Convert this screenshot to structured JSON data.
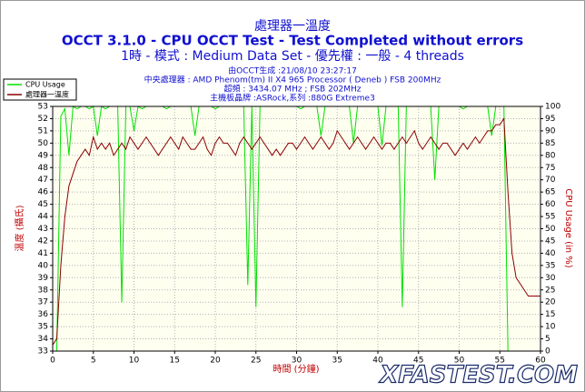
{
  "chart_data": {
    "type": "line",
    "title": "處理器一溫度",
    "subtitle": "OCCT 3.1.0 - CPU OCCT Test - Test Completed without errors",
    "subtitle2": "1時 - 模式 : Medium Data Set - 優先權 : 一般 - 4 threads",
    "info": [
      "由OCCT生成 :21/08/10 23:27:17",
      "中央處理器 : AMD Phenom(tm) II X4 965 Processor ( Deneb ) FSB 200MHz",
      "超頻 : 3434.07 MHz ; FSB 202MHz",
      "主機板晶牌 :ASRock,系列 :880G Extreme3"
    ],
    "xlabel": "時間 (分鐘)",
    "ylabel": "溫度 (攝氏)",
    "y2label": "CPU Usage (in %)",
    "watermark": "XFASTEST.COM",
    "grid": true,
    "legend": "top-left",
    "xlim": [
      0,
      60
    ],
    "xticks": [
      0,
      5,
      10,
      15,
      20,
      25,
      30,
      35,
      40,
      45,
      50,
      55,
      60
    ],
    "ylim": [
      33,
      53
    ],
    "yticks": [
      33,
      34,
      35,
      36,
      37,
      38,
      39,
      40,
      41,
      42,
      43,
      44,
      45,
      46,
      47,
      48,
      49,
      50,
      51,
      52,
      53
    ],
    "y2lim": [
      0,
      100
    ],
    "y2ticks": [
      0,
      5,
      10,
      15,
      20,
      25,
      30,
      35,
      40,
      45,
      50,
      55,
      60,
      65,
      70,
      75,
      80,
      85,
      90,
      95,
      100
    ],
    "x": [
      0,
      0.5,
      1,
      1.5,
      2,
      2.5,
      3,
      3.5,
      4,
      4.5,
      5,
      5.5,
      6,
      6.5,
      7,
      7.5,
      8,
      8.5,
      9,
      9.5,
      10,
      10.5,
      11,
      11.5,
      12,
      12.5,
      13,
      13.5,
      14,
      14.5,
      15,
      15.5,
      16,
      16.5,
      17,
      17.5,
      18,
      18.5,
      19,
      19.5,
      20,
      20.5,
      21,
      21.5,
      22,
      22.5,
      23,
      23.5,
      24,
      24.5,
      25,
      25.5,
      26,
      26.5,
      27,
      27.5,
      28,
      28.5,
      29,
      29.5,
      30,
      30.5,
      31,
      31.5,
      32,
      32.5,
      33,
      33.5,
      34,
      34.5,
      35,
      35.5,
      36,
      36.5,
      37,
      37.5,
      38,
      38.5,
      39,
      39.5,
      40,
      40.5,
      41,
      41.5,
      42,
      42.5,
      43,
      43.5,
      44,
      44.5,
      45,
      45.5,
      46,
      46.5,
      47,
      47.5,
      48,
      48.5,
      49,
      49.5,
      50,
      50.5,
      51,
      51.5,
      52,
      52.5,
      53,
      53.5,
      54,
      54.5,
      55,
      55.5,
      56,
      56.5,
      57,
      57.5,
      58,
      58.5,
      59,
      59.5,
      60
    ],
    "series": [
      {
        "name": "CPU Usage",
        "color": "#00e000",
        "axis": "y2",
        "values": [
          0,
          0,
          96,
          99,
          80,
          100,
          99,
          100,
          100,
          99,
          100,
          88,
          100,
          99,
          100,
          100,
          100,
          20,
          100,
          100,
          90,
          100,
          99,
          100,
          100,
          100,
          100,
          100,
          99,
          100,
          100,
          100,
          100,
          100,
          100,
          88,
          100,
          100,
          100,
          100,
          99,
          100,
          100,
          100,
          100,
          100,
          100,
          100,
          27,
          100,
          18,
          100,
          100,
          100,
          100,
          100,
          100,
          100,
          100,
          100,
          100,
          99,
          100,
          100,
          100,
          100,
          88,
          100,
          100,
          100,
          100,
          100,
          100,
          100,
          85,
          100,
          100,
          100,
          100,
          100,
          100,
          84,
          100,
          100,
          100,
          100,
          18,
          100,
          100,
          100,
          100,
          100,
          100,
          100,
          70,
          100,
          100,
          100,
          100,
          100,
          100,
          99,
          100,
          100,
          100,
          100,
          100,
          100,
          88,
          100,
          100,
          100,
          0,
          0,
          0,
          0,
          0,
          0,
          0,
          0,
          0
        ]
      },
      {
        "name": "處理器一溫度",
        "color": "#8b0000",
        "values": [
          33.5,
          34,
          40,
          44,
          46.5,
          47.5,
          48.5,
          49,
          49.5,
          49,
          50.5,
          49.5,
          50,
          49.5,
          50,
          49,
          49.5,
          50,
          49.5,
          50.5,
          50,
          49.5,
          50,
          50.5,
          50,
          49.5,
          49,
          49.5,
          50,
          50.5,
          50,
          49.5,
          50.5,
          50,
          49.5,
          49.5,
          50,
          50.5,
          49.5,
          49,
          50,
          50.5,
          50,
          50,
          49.5,
          49,
          50,
          50.5,
          50,
          49.5,
          50,
          50.5,
          50,
          49.5,
          49,
          49.5,
          49,
          49.5,
          50,
          50,
          49.5,
          50,
          50.5,
          50,
          49.5,
          50,
          50.5,
          50,
          49.5,
          50,
          51,
          50.5,
          50,
          49.5,
          50,
          50.5,
          50,
          49.5,
          50,
          50.5,
          50,
          49.5,
          50,
          50,
          49.5,
          50,
          50.5,
          50,
          50.5,
          51,
          50,
          49.5,
          50,
          50.5,
          50,
          49.5,
          50,
          50,
          49.5,
          49,
          49.5,
          50,
          49.5,
          50,
          50.5,
          50,
          50.5,
          51,
          51,
          51.5,
          51.5,
          52,
          46,
          41,
          39,
          38.5,
          38,
          37.5,
          37.5,
          37.5,
          37.5
        ]
      }
    ]
  }
}
